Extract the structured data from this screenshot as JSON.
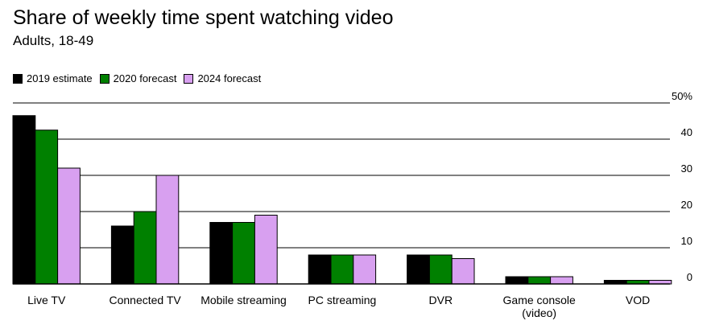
{
  "title": "Share of weekly time spent watching video",
  "subtitle": "Adults, 18-49",
  "colors": {
    "series_2019": "#000000",
    "series_2020": "#008000",
    "series_2024": "#d8a0f0",
    "grid": "#000000"
  },
  "chart_data": {
    "type": "bar",
    "categories": [
      "Live TV",
      "Connected TV",
      "Mobile streaming",
      "PC streaming",
      "DVR",
      "Game console (video)",
      "VOD"
    ],
    "category_lines": [
      [
        "Live TV"
      ],
      [
        "Connected TV"
      ],
      [
        "Mobile streaming"
      ],
      [
        "PC streaming"
      ],
      [
        "DVR"
      ],
      [
        "Game console",
        "(video)"
      ],
      [
        "VOD"
      ]
    ],
    "series": [
      {
        "name": "2019 estimate",
        "color": "#000000",
        "values": [
          46.5,
          16,
          17,
          8,
          8,
          2,
          1
        ]
      },
      {
        "name": "2020 forecast",
        "color": "#008000",
        "values": [
          42.5,
          20,
          17,
          8,
          8,
          2,
          1
        ]
      },
      {
        "name": "2024 forecast",
        "color": "#d8a0f0",
        "values": [
          32,
          30,
          19,
          8,
          7,
          2,
          1
        ]
      }
    ],
    "ylim": [
      0,
      50
    ],
    "yticks": [
      0,
      10,
      20,
      30,
      40,
      50
    ],
    "ytick_labels": [
      "0",
      "10",
      "20",
      "30",
      "40",
      "50%"
    ],
    "y_axis_position": "right",
    "grid": true,
    "legend_position": "top-left"
  }
}
